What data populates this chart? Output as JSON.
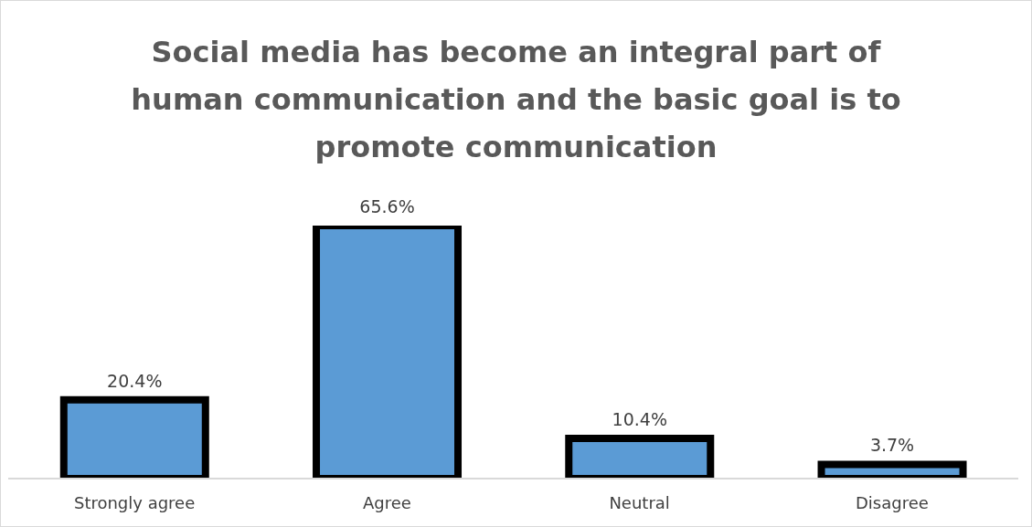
{
  "chart_data": {
    "type": "bar",
    "title": "Social media has become an integral part of human communication and the basic goal is to promote communication",
    "categories": [
      "Strongly agree",
      "Agree",
      "Neutral",
      "Disagree"
    ],
    "values": [
      20.4,
      65.6,
      10.4,
      3.7
    ],
    "value_labels": [
      "20.4%",
      "65.6%",
      "10.4%",
      "3.7%"
    ],
    "color": "#5b9bd5",
    "grid": false,
    "legend": false
  }
}
